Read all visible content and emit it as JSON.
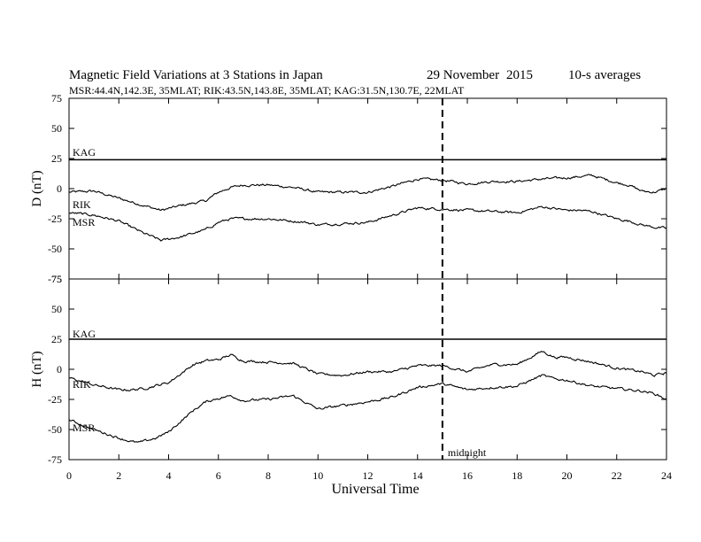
{
  "header": {
    "title": "Magnetic Field Variations at 3 Stations in Japan",
    "date_day_month": "29 November",
    "date_year": "2015",
    "averages": "10-s averages",
    "stations_line": "MSR:44.4N,142.3E, 35MLAT;  RIK:43.5N,143.8E, 35MLAT;  KAG:31.5N,130.7E, 22MLAT"
  },
  "chart_data": {
    "type": "line",
    "xlabel": "Universal Time",
    "xlim": [
      0,
      24
    ],
    "x_ticks": [
      "0",
      "2",
      "4",
      "6",
      "8",
      "10",
      "12",
      "14",
      "16",
      "18",
      "20",
      "22",
      "24"
    ],
    "annotation": {
      "label": "midnight",
      "x": 15
    },
    "panels": [
      {
        "ylabel": "D (nT)",
        "ylim": [
          -75,
          75
        ],
        "y_ticks": [
          "75",
          "50",
          "25",
          "0",
          "-25",
          "-50",
          "-75"
        ],
        "series": [
          {
            "name": "KAG",
            "x": [
              0,
              24
            ],
            "y": [
              24,
              24
            ]
          },
          {
            "name": "RIK",
            "x": [
              0,
              1,
              2,
              3,
              3.7,
              4.5,
              5.5,
              6,
              6.5,
              7,
              8,
              9,
              9.5,
              10,
              11,
              12,
              13,
              14,
              15,
              16,
              17,
              18,
              19,
              20,
              20.5,
              21,
              22,
              22.5,
              23,
              23.5,
              24
            ],
            "y": [
              -3,
              -2,
              -8,
              -14,
              -18,
              -14,
              -10,
              -3,
              1,
              3,
              3,
              1,
              -1,
              -3,
              -3,
              -3,
              2,
              8,
              7,
              4,
              6,
              6,
              8,
              9,
              10,
              11,
              5,
              3,
              -2,
              -3,
              0
            ]
          },
          {
            "name": "MSR",
            "x": [
              0,
              1,
              2,
              3,
              3.7,
              4.5,
              5.5,
              6,
              6.5,
              7,
              8,
              9,
              9.5,
              10,
              11,
              12,
              13,
              14,
              15,
              16,
              17,
              18,
              19,
              20,
              20.5,
              21,
              22,
              22.5,
              23,
              23.5,
              24
            ],
            "y": [
              -20,
              -22,
              -27,
              -37,
              -43,
              -40,
              -34,
              -28,
              -25,
              -25,
              -25,
              -27,
              -28,
              -30,
              -29,
              -28,
              -22,
              -16,
              -17,
              -18,
              -19,
              -20,
              -15,
              -18,
              -18,
              -19,
              -25,
              -27,
              -30,
              -32,
              -33
            ]
          }
        ]
      },
      {
        "ylabel": "H (nT)",
        "ylim": [
          -75,
          75
        ],
        "y_ticks": [
          "75",
          "50",
          "25",
          "0",
          "-25",
          "-50",
          "-75"
        ],
        "series": [
          {
            "name": "KAG",
            "x": [
              0,
              24
            ],
            "y": [
              25,
              25
            ]
          },
          {
            "name": "RIK",
            "x": [
              0,
              1,
              2,
              2.5,
              3,
              4,
              5,
              5.5,
              6,
              6.5,
              7,
              8,
              9,
              10,
              11,
              12,
              13,
              14,
              15,
              16,
              17,
              18,
              19,
              19.5,
              20,
              21,
              22,
              23,
              23.5,
              24
            ],
            "y": [
              -7,
              -13,
              -17,
              -17,
              -16,
              -11,
              4,
              7,
              8,
              12,
              7,
              6,
              5,
              -4,
              -5,
              -2,
              -2,
              3,
              3,
              -2,
              4,
              4,
              15,
              10,
              10,
              6,
              1,
              -2,
              -5,
              -3
            ]
          },
          {
            "name": "MSR",
            "x": [
              0,
              1,
              2,
              2.5,
              2.8,
              3.5,
              4,
              5,
              5.5,
              6,
              6.5,
              7,
              8,
              9,
              10,
              11,
              12,
              13,
              14,
              15,
              16,
              17,
              18,
              19,
              19.5,
              20,
              21,
              22,
              23,
              23.5,
              24
            ],
            "y": [
              -42,
              -50,
              -57,
              -60,
              -61,
              -57,
              -52,
              -34,
              -27,
              -24,
              -22,
              -26,
              -25,
              -22,
              -33,
              -30,
              -27,
              -23,
              -15,
              -12,
              -17,
              -15,
              -14,
              -5,
              -8,
              -9,
              -14,
              -16,
              -18,
              -20,
              -25
            ]
          }
        ]
      }
    ]
  }
}
